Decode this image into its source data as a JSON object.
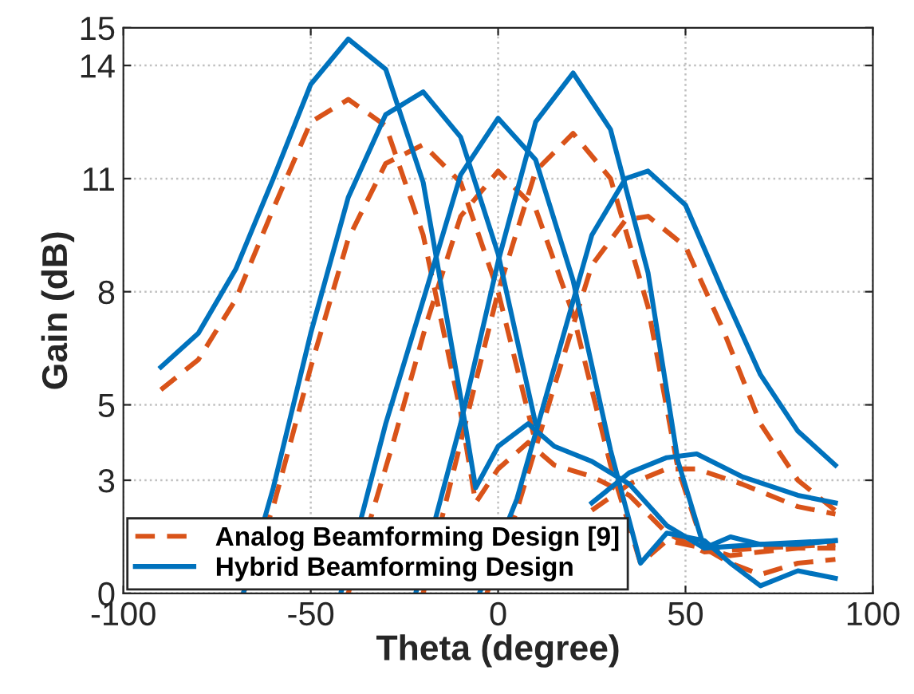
{
  "chart_data": {
    "type": "line",
    "xlabel": "Theta (degree)",
    "ylabel": "Gain (dB)",
    "xlim": [
      -100,
      100
    ],
    "xticks": [
      -100,
      -50,
      0,
      50,
      100
    ],
    "ylim": [
      0,
      15
    ],
    "yticks": [
      0,
      3,
      5,
      8,
      11,
      14,
      15
    ],
    "grid": true,
    "legend": "bottom left",
    "marker": "none",
    "series": [
      {
        "name": "Analog Beamforming Design [9]",
        "color": "#d95319",
        "line_style": "dashed",
        "x": [
          -90,
          -80,
          -70,
          -60,
          -50,
          -40,
          -30,
          -20,
          -10,
          -6,
          0,
          8,
          15,
          25,
          35,
          45,
          55,
          70,
          90
        ],
        "values": [
          5.4,
          6.2,
          7.8,
          10.2,
          12.5,
          13.1,
          12.4,
          9.5,
          4.8,
          2.4,
          3.3,
          4.0,
          3.4,
          3.1,
          2.6,
          1.6,
          1.1,
          1.2,
          1.3
        ]
      },
      {
        "color": "#d95319",
        "line_style": "dashed",
        "x": [
          -68,
          -60,
          -50,
          -40,
          -30,
          -20,
          -10,
          0,
          10,
          17,
          25,
          35,
          45,
          53,
          65,
          80,
          90
        ],
        "values": [
          0,
          2.3,
          6.0,
          9.4,
          11.4,
          11.9,
          10.9,
          8.0,
          4.0,
          null,
          2.2,
          2.9,
          3.3,
          3.3,
          2.9,
          2.3,
          2.1
        ]
      },
      {
        "color": "#d95319",
        "line_style": "dashed",
        "x": [
          -40,
          -34,
          -28,
          -19,
          -10,
          0,
          10,
          20,
          30,
          38,
          45,
          55,
          62,
          70,
          80,
          90
        ],
        "values": [
          0,
          2.0,
          4.0,
          7.2,
          10.0,
          11.2,
          10.2,
          7.4,
          3.4,
          0.8,
          1.4,
          1.2,
          0.8,
          0.5,
          0.8,
          0.9
        ]
      },
      {
        "color": "#d95319",
        "line_style": "dashed",
        "x": [
          -20,
          -10,
          0,
          10,
          20,
          30,
          40,
          48,
          55,
          62,
          70,
          80,
          90
        ],
        "values": [
          0,
          4.0,
          8.0,
          11.2,
          12.2,
          11.0,
          7.6,
          3.3,
          1.2,
          1.0,
          1.1,
          1.2,
          1.2
        ]
      },
      {
        "color": "#d95319",
        "line_style": "dashed",
        "x": [
          -3,
          5,
          15,
          25,
          34,
          40,
          50,
          60,
          70,
          80,
          90
        ],
        "values": [
          0,
          2.2,
          5.5,
          8.7,
          9.9,
          10.0,
          9.2,
          7.0,
          4.5,
          3.0,
          2.2
        ]
      },
      {
        "name": "Hybrid Beamforming Design",
        "color": "#0072bd",
        "line_style": "solid",
        "x": [
          -90,
          -80,
          -70,
          -60,
          -50,
          -40,
          -30,
          -20,
          -10,
          -6,
          0,
          8,
          15,
          25,
          35,
          45,
          55,
          70,
          90
        ],
        "values": [
          6.0,
          6.9,
          8.6,
          11.0,
          13.5,
          14.7,
          13.9,
          10.9,
          5.2,
          2.8,
          3.9,
          4.5,
          3.9,
          3.5,
          2.9,
          1.8,
          1.2,
          1.3,
          1.4
        ]
      },
      {
        "color": "#0072bd",
        "line_style": "solid",
        "x": [
          -68,
          -60,
          -50,
          -40,
          -30,
          -20,
          -10,
          0,
          10,
          17,
          25,
          35,
          45,
          53,
          65,
          80,
          90
        ],
        "values": [
          0,
          2.8,
          6.9,
          10.5,
          12.7,
          13.3,
          12.1,
          9.0,
          4.5,
          null,
          2.4,
          3.2,
          3.6,
          3.7,
          3.1,
          2.6,
          2.4
        ]
      },
      {
        "color": "#0072bd",
        "line_style": "solid",
        "x": [
          -42,
          -36,
          -30,
          -19,
          -10,
          0,
          10,
          20,
          30,
          38,
          45,
          55,
          62,
          70,
          80,
          90
        ],
        "values": [
          0,
          2.2,
          4.5,
          8.1,
          11.1,
          12.6,
          11.5,
          8.3,
          3.8,
          0.8,
          1.6,
          1.4,
          0.8,
          0.2,
          0.6,
          0.4
        ]
      },
      {
        "color": "#0072bd",
        "line_style": "solid",
        "x": [
          -22,
          -10,
          0,
          10,
          20,
          30,
          40,
          48,
          55,
          62,
          70,
          80,
          90
        ],
        "values": [
          0,
          4.5,
          8.8,
          12.5,
          13.8,
          12.3,
          8.5,
          3.5,
          1.2,
          1.5,
          1.3,
          1.3,
          1.4
        ]
      },
      {
        "color": "#0072bd",
        "line_style": "solid",
        "x": [
          -5,
          5,
          15,
          25,
          34,
          40,
          50,
          60,
          70,
          80,
          90
        ],
        "values": [
          0,
          2.5,
          6.0,
          9.5,
          11.0,
          11.2,
          10.3,
          8.0,
          5.8,
          4.3,
          3.4
        ]
      }
    ]
  }
}
